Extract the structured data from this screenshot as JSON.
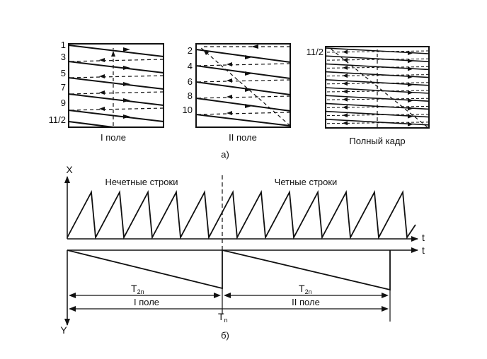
{
  "panel_a": {
    "field1": {
      "caption": "I поле",
      "line_labels": [
        "1",
        "3",
        "5",
        "7",
        "9",
        "11/2"
      ]
    },
    "field2": {
      "caption": "II поле",
      "line_labels": [
        "2",
        "4",
        "6",
        "8",
        "10"
      ]
    },
    "frame": {
      "caption": "Полный кадр",
      "line_labels": [
        "11/2"
      ]
    },
    "sublabel": "а)"
  },
  "panel_b": {
    "x_axis_label": "X",
    "y_axis_label": "Y",
    "time_label_top": "t",
    "time_label_bottom": "t",
    "odd_lines_label": "Нечетные строки",
    "even_lines_label": "Четные строки",
    "t2n_main": "T",
    "t2n_sub": "2n",
    "tn_main": "T",
    "tn_sub": "n",
    "field1_label": "I поле",
    "field2_label": "II поле",
    "sublabel": "б)"
  }
}
